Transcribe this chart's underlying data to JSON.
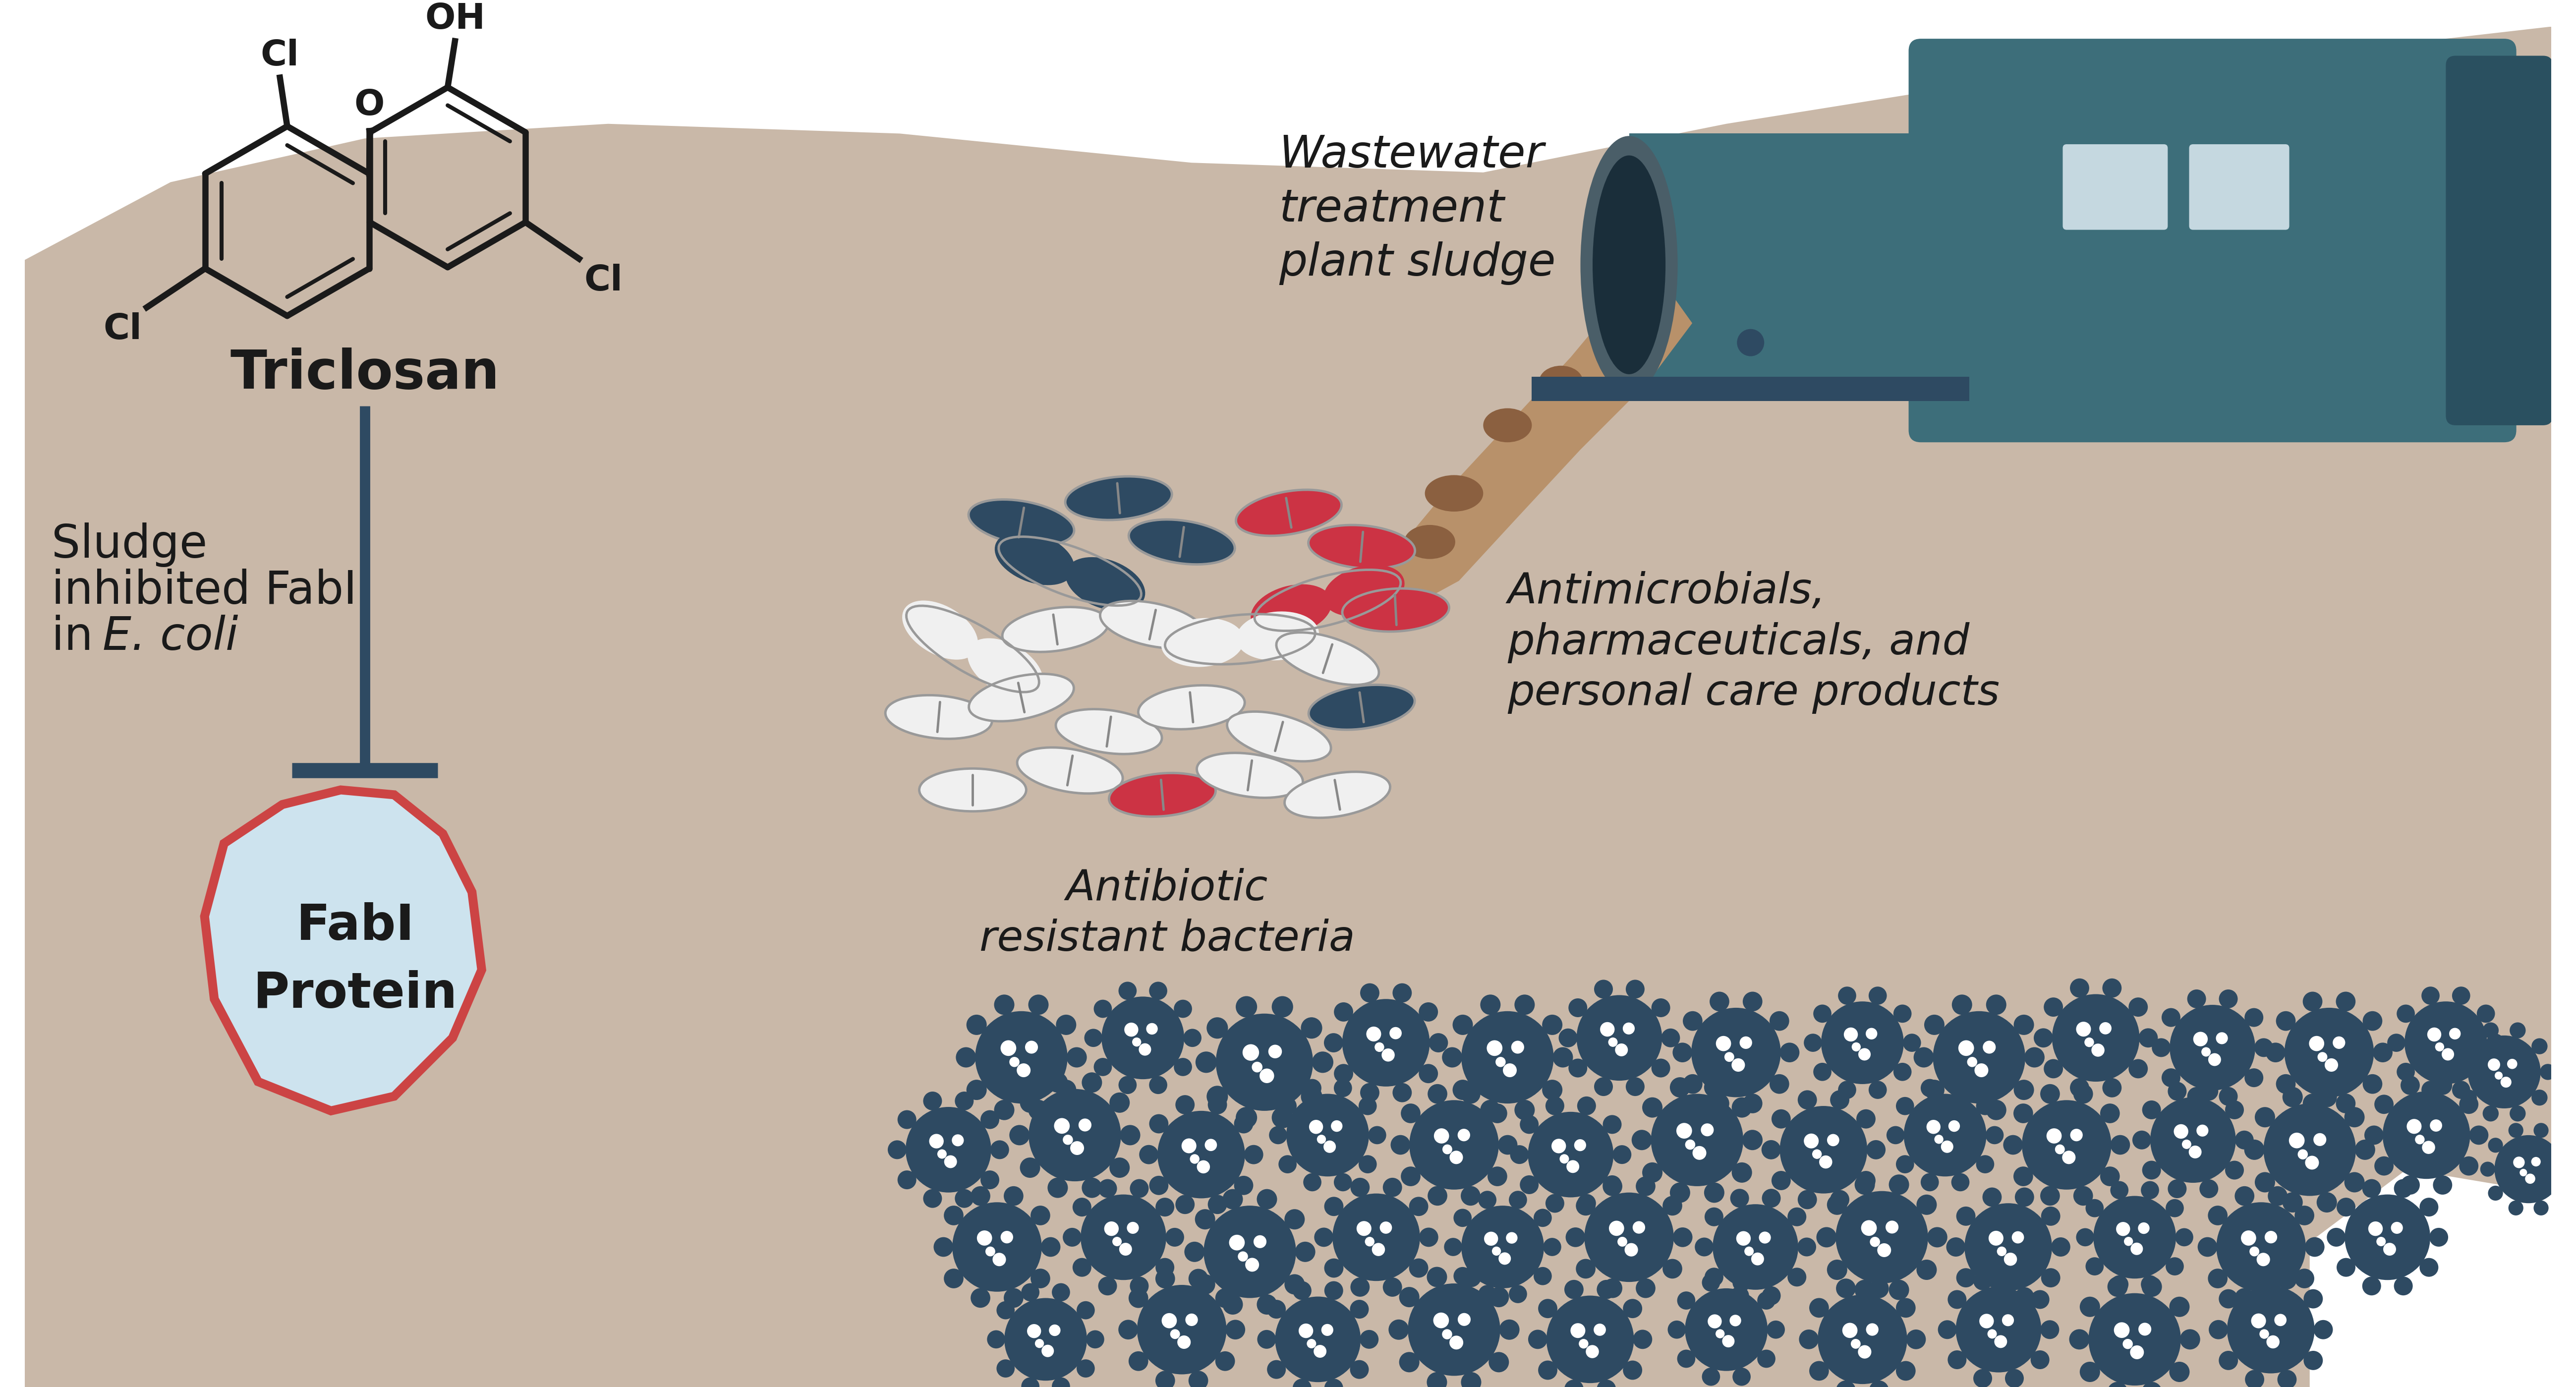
{
  "bg_color": "#c9b8a8",
  "white_color": "#ffffff",
  "dark_blue": "#2e4a62",
  "drum_teal": "#3d6e7a",
  "drum_dark": "#2a5060",
  "drum_rim": "#4a5e68",
  "window_blue": "#c5d8e0",
  "light_blue_blob": "#cde3ee",
  "red_border": "#cc4444",
  "brown_sludge": "#b8916a",
  "brown_dark": "#8b6040",
  "pill_white": "#f0f0f0",
  "pill_red": "#cc3344",
  "pill_blue": "#2e4a62",
  "pill_line": "#aaaaaa",
  "bond_color": "#1a1a1a",
  "text_color": "#1a1a1a",
  "triclosan_label": "Triclosan",
  "wastewater_label": "Wastewater\ntreatment\nplant sludge",
  "antimicrobials_label": "Antimicrobials,\npharmaceuticals, and\npersonal care products",
  "antibiotic_label": "Antibiotic\nresistant bacteria",
  "fabI_label": "FabI\nProtein",
  "sludge_text1": "Sludge",
  "sludge_text2": "inhibited FabI",
  "sludge_text3": "in ",
  "sludge_text3i": "E. coli"
}
